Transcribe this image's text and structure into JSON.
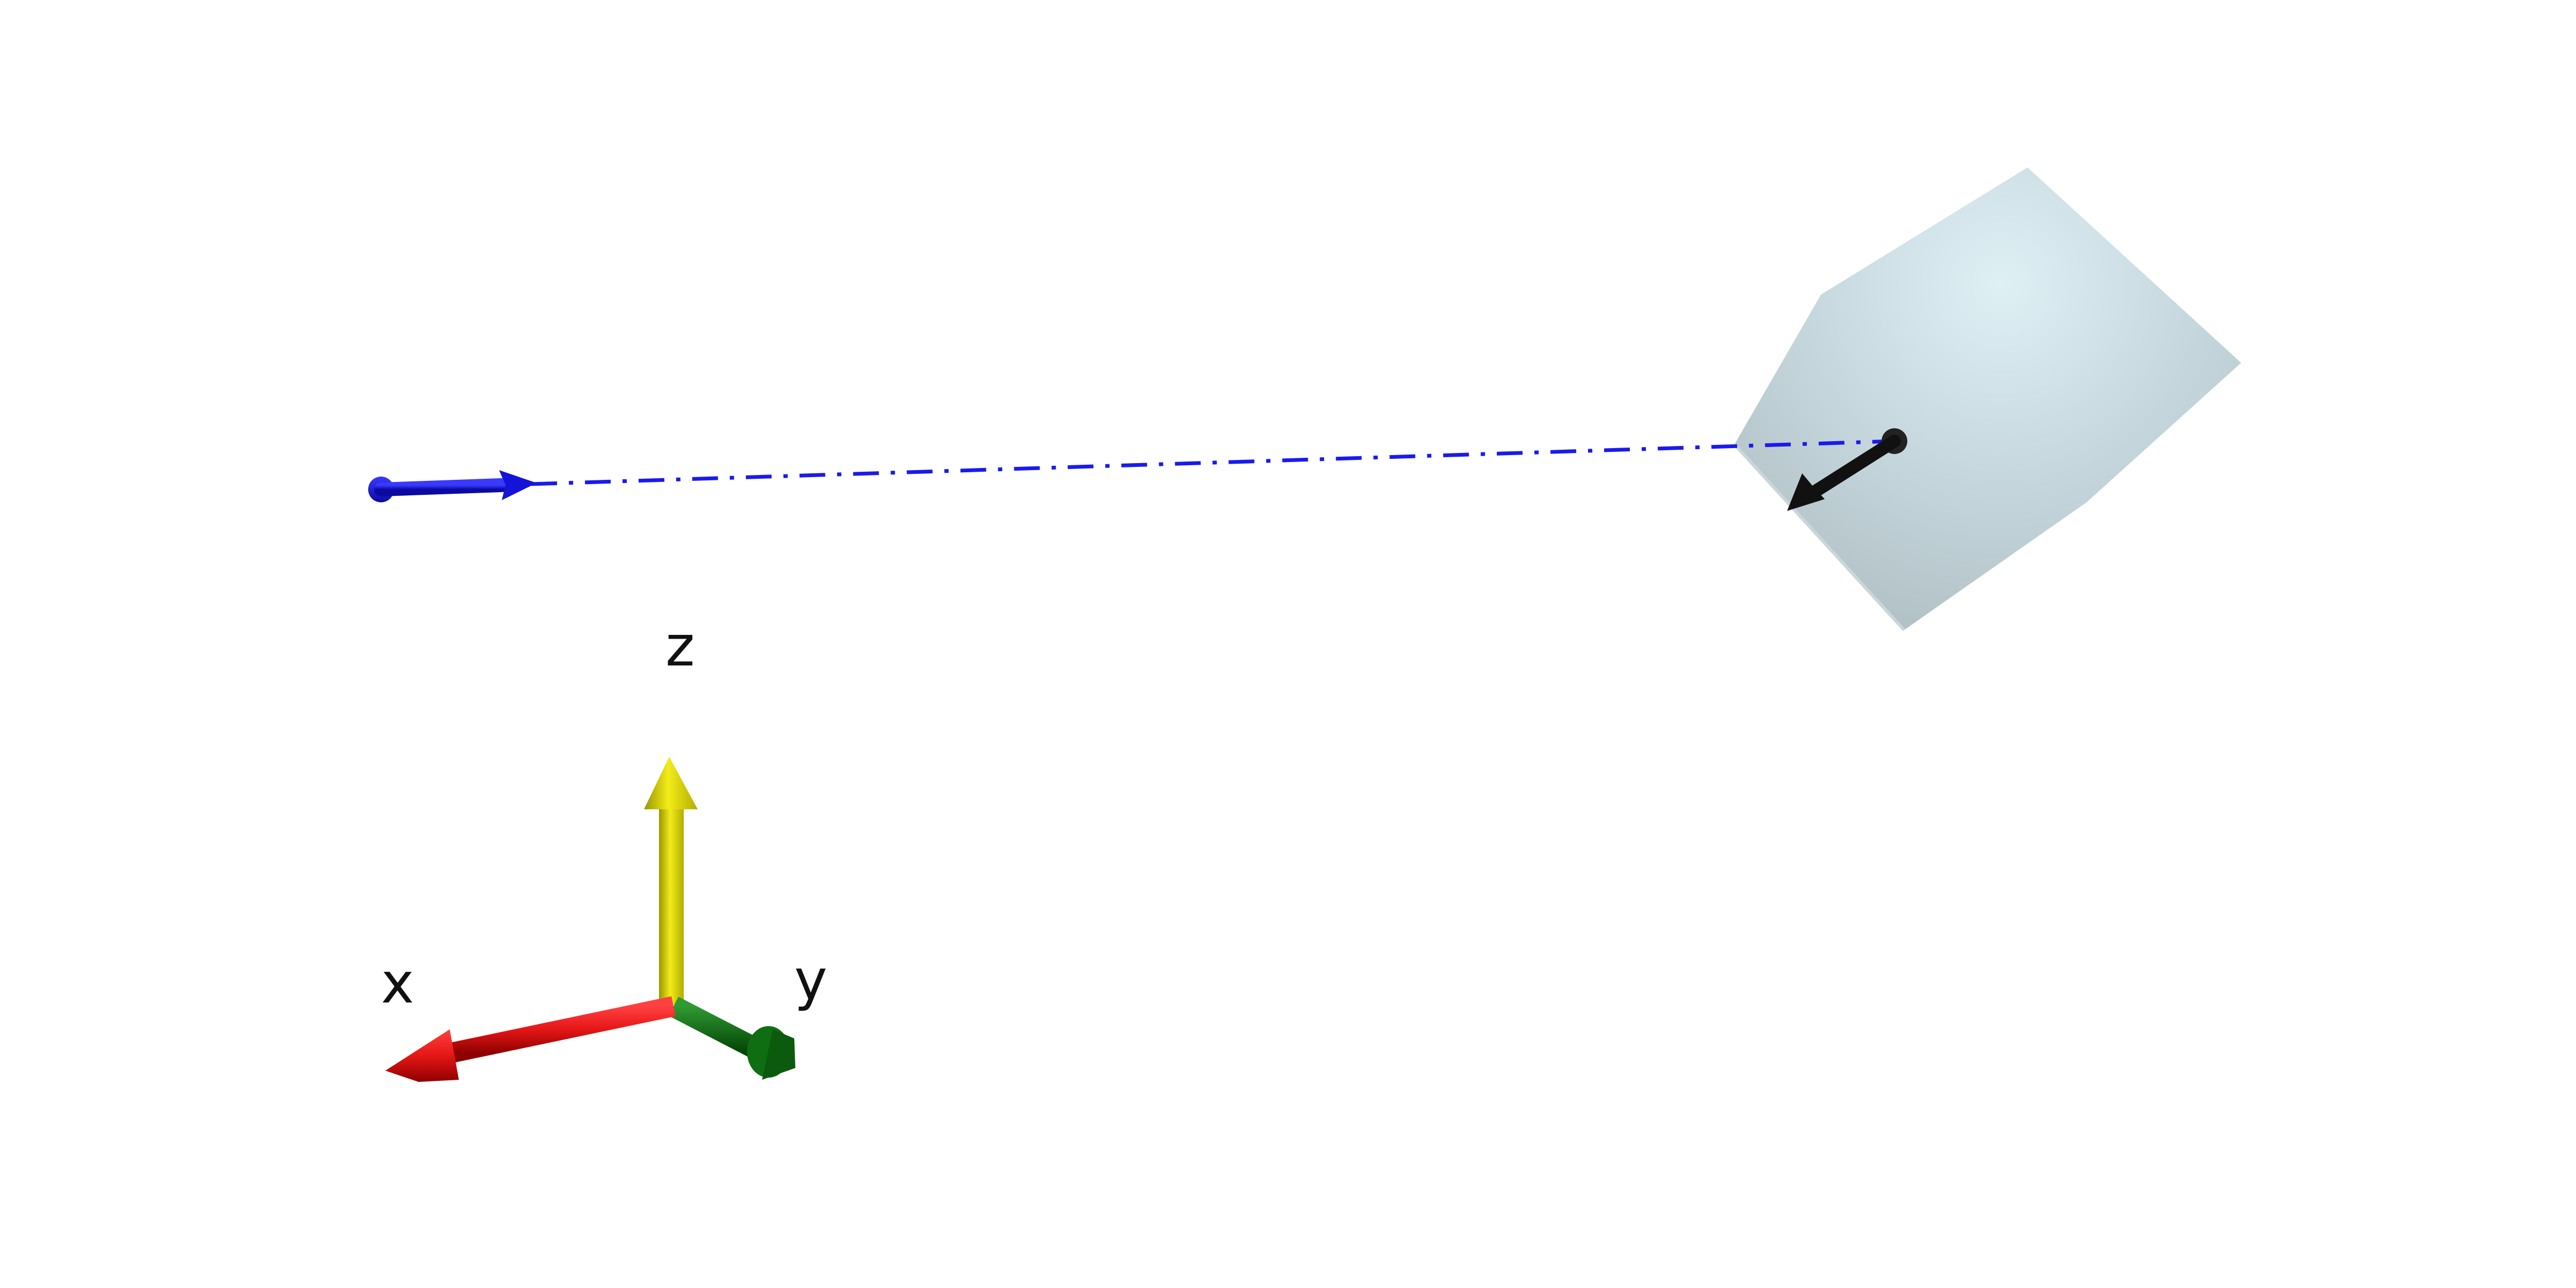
{
  "axes": {
    "x_label": "x",
    "y_label": "y",
    "z_label": "z",
    "x_color": "#e51616",
    "y_color": "#0f6e12",
    "z_color": "#e6e000"
  },
  "scene": {
    "source_arrow_color": "#1414d8",
    "ray_line_color": "#1a1aee",
    "ray_line_style": "dash-dot",
    "target_arrow_color": "#111111",
    "solid_color": "#b8c8cc",
    "background_color": "#ffffff"
  },
  "icons": {
    "source": "blue-vector-arrow-icon",
    "target": "black-vector-arrow-icon",
    "solid": "polyhedron-icon"
  }
}
